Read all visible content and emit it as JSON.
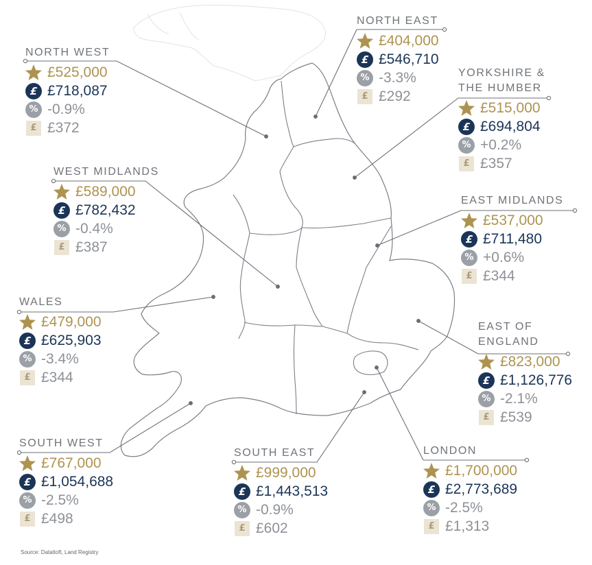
{
  "regions": [
    {
      "key": "north_west",
      "name_lines": [
        "NORTH WEST"
      ],
      "values": {
        "star": "£525,000",
        "price": "£718,087",
        "pct": "-0.9%",
        "rent": "£372"
      }
    },
    {
      "key": "north_east",
      "name_lines": [
        "NORTH EAST"
      ],
      "values": {
        "star": "£404,000",
        "price": "£546,710",
        "pct": "-3.3%",
        "rent": "£292"
      }
    },
    {
      "key": "yorkshire",
      "name_lines": [
        "YORKSHIRE &",
        "THE HUMBER"
      ],
      "values": {
        "star": "£515,000",
        "price": "£694,804",
        "pct": "+0.2%",
        "rent": "£357"
      }
    },
    {
      "key": "west_midlands",
      "name_lines": [
        "WEST MIDLANDS"
      ],
      "values": {
        "star": "£589,000",
        "price": "£782,432",
        "pct": "-0.4%",
        "rent": "£387"
      }
    },
    {
      "key": "east_midlands",
      "name_lines": [
        "EAST MIDLANDS"
      ],
      "values": {
        "star": "£537,000",
        "price": "£711,480",
        "pct": "+0.6%",
        "rent": "£344"
      }
    },
    {
      "key": "wales",
      "name_lines": [
        "WALES"
      ],
      "values": {
        "star": "£479,000",
        "price": "£625,903",
        "pct": "-3.4%",
        "rent": "£344"
      }
    },
    {
      "key": "east_of_england",
      "name_lines": [
        "EAST OF",
        "ENGLAND"
      ],
      "values": {
        "star": "£823,000",
        "price": "£1,126,776",
        "pct": "-2.1%",
        "rent": "£539"
      }
    },
    {
      "key": "south_west",
      "name_lines": [
        "SOUTH WEST"
      ],
      "values": {
        "star": "£767,000",
        "price": "£1,054,688",
        "pct": "-2.5%",
        "rent": "£498"
      }
    },
    {
      "key": "south_east",
      "name_lines": [
        "SOUTH EAST"
      ],
      "values": {
        "star": "£999,000",
        "price": "£1,443,513",
        "pct": "-0.9%",
        "rent": "£602"
      }
    },
    {
      "key": "london",
      "name_lines": [
        "LONDON"
      ],
      "values": {
        "star": "£1,700,000",
        "price": "£2,773,689",
        "pct": "-2.5%",
        "rent": "£1,313"
      }
    }
  ],
  "icons": {
    "star": {
      "name": "star-icon",
      "glyph": "",
      "color": "#ae9350"
    },
    "price": {
      "name": "pound-circle-icon",
      "glyph": "£",
      "color": "#1b3557"
    },
    "pct": {
      "name": "percent-circle-icon",
      "glyph": "%",
      "color": "#9aa0a6"
    },
    "rent": {
      "name": "pound-square-icon",
      "glyph": "£",
      "color": "#ece4d3"
    }
  },
  "colors": {
    "gold": "#ae9350",
    "navy": "#1b3557",
    "grey": "#8d9196",
    "outline": "#7a7f86",
    "leader": "#6b6f74"
  },
  "source": "Source: Datatloft, Land Registry"
}
